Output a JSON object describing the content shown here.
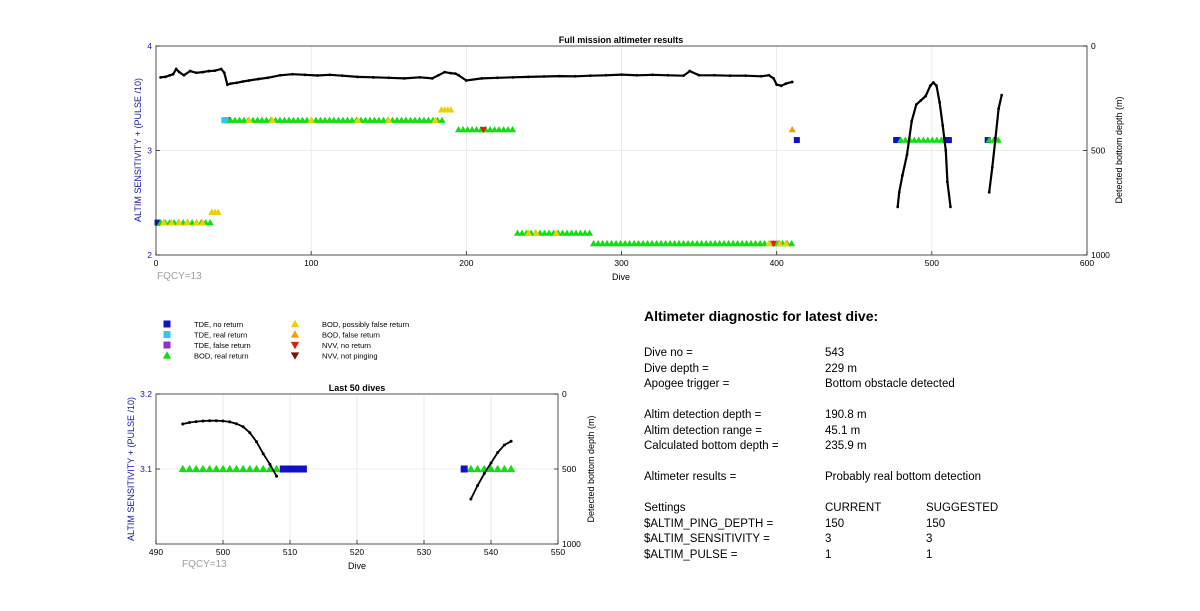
{
  "top_chart": {
    "title": "Full mission altimeter results",
    "xlabel": "Dive",
    "ylabel_left": "ALTIM SENSITIVITY + (PULSE /10)",
    "ylabel_right": "Detected bottom depth (m)",
    "note": "FQCY=13",
    "x_ticks": [
      "0",
      "100",
      "200",
      "300",
      "400",
      "500",
      "600"
    ],
    "y_ticks_left": [
      "2",
      "3",
      "4"
    ],
    "y_ticks_right": [
      "0",
      "500",
      "1000"
    ]
  },
  "bottom_chart": {
    "title": "Last 50 dives",
    "xlabel": "Dive",
    "ylabel_left": "ALTIM SENSITIVITY + (PULSE /10)",
    "ylabel_right": "Detected bottom depth (m)",
    "note": "FQCY=13",
    "x_ticks": [
      "490",
      "500",
      "510",
      "520",
      "530",
      "540",
      "550"
    ],
    "y_ticks_left": [
      "3.1",
      "3.2"
    ],
    "y_ticks_right": [
      "0",
      "500",
      "1000"
    ]
  },
  "legend": {
    "items": [
      {
        "label": "TDE, no return",
        "color": "#1010c8",
        "marker": "square"
      },
      {
        "label": "TDE, real return",
        "color": "#30c8f0",
        "marker": "square"
      },
      {
        "label": "TDE, false return",
        "color": "#9030d0",
        "marker": "square"
      },
      {
        "label": "BOD, real return",
        "color": "#10e010",
        "marker": "triangle-up"
      },
      {
        "label": "BOD, possibly false return",
        "color": "#f0d000",
        "marker": "triangle-up"
      },
      {
        "label": "BOD, false return",
        "color": "#f0a000",
        "marker": "triangle-up"
      },
      {
        "label": "NVV, no return",
        "color": "#e02000",
        "marker": "triangle-down"
      },
      {
        "label": "NVV, not pinging",
        "color": "#801000",
        "marker": "triangle-down"
      }
    ]
  },
  "diagnostic": {
    "title": "Altimeter diagnostic for latest dive:",
    "dive_no_label": "Dive no =",
    "dive_no": "543",
    "dive_depth_label": "Dive depth =",
    "dive_depth": "229 m",
    "apogee_label": "Apogee trigger =",
    "apogee": "Bottom obstacle detected",
    "det_depth_label": "Altim detection depth =",
    "det_depth": "190.8 m",
    "det_range_label": "Altim detection range =",
    "det_range": "45.1 m",
    "calc_depth_label": "Calculated bottom depth =",
    "calc_depth": "235.9 m",
    "results_label": "Altimeter results =",
    "results": "Probably real bottom detection",
    "settings_label": "Settings",
    "current_label": "CURRENT",
    "suggested_label": "SUGGESTED",
    "ping_label": "$ALTIM_PING_DEPTH =",
    "ping_current": "150",
    "ping_suggested": "150",
    "sens_label": "$ALTIM_SENSITIVITY =",
    "sens_current": "3",
    "sens_suggested": "3",
    "pulse_label": "$ALTIM_PULSE =",
    "pulse_current": "1",
    "pulse_suggested": "1"
  },
  "colors": {
    "axis": "#262626",
    "grid": "#e6e6e6",
    "label_blue": "#1414b4",
    "note_gray": "#a0a0a0",
    "depth_line": "#000000"
  },
  "chart_data": [
    {
      "type": "scatter",
      "title": "Full mission altimeter results",
      "xlim": [
        0,
        600
      ],
      "ylim_left": [
        2,
        4
      ],
      "ylim_right": [
        1000,
        0
      ],
      "grid": true,
      "series": [
        {
          "name": "TDE, no return",
          "marker": "square",
          "color": "#1010c8",
          "points": [
            [
              1,
              2.31
            ],
            [
              46,
              3.29
            ],
            [
              413,
              3.1
            ],
            [
              477,
              3.1
            ],
            [
              478,
              3.1
            ],
            [
              509,
              3.1
            ],
            [
              510,
              3.1
            ],
            [
              511,
              3.1
            ],
            [
              536,
              3.1
            ]
          ]
        },
        {
          "name": "TDE, real return",
          "marker": "square",
          "color": "#30c8f0",
          "points": [
            [
              44,
              3.29
            ],
            [
              45,
              3.29
            ]
          ]
        },
        {
          "name": "BOD, real return",
          "marker": "triangle-up",
          "color": "#10e010",
          "ranges": [
            {
              "x0": 3,
              "x1": 37,
              "y": 2.31
            },
            {
              "x0": 48,
              "x1": 187,
              "y": 3.29
            },
            {
              "x0": 195,
              "x1": 232,
              "y": 3.2
            },
            {
              "x0": 233,
              "x1": 280,
              "y": 2.21
            },
            {
              "x0": 282,
              "x1": 410,
              "y": 2.11
            },
            {
              "x0": 480,
              "x1": 508,
              "y": 3.1
            },
            {
              "x0": 537,
              "x1": 543,
              "y": 3.1
            }
          ]
        },
        {
          "name": "BOD, possibly false return",
          "marker": "triangle-up",
          "color": "#f0d000",
          "points": [
            [
              36,
              2.41
            ],
            [
              38,
              2.41
            ],
            [
              40,
              2.41
            ],
            [
              184,
              3.39
            ],
            [
              186,
              3.39
            ],
            [
              188,
              3.39
            ],
            [
              190,
              3.39
            ],
            [
              5,
              2.31
            ],
            [
              10,
              2.31
            ],
            [
              15,
              2.31
            ],
            [
              20,
              2.31
            ],
            [
              26,
              2.31
            ],
            [
              30,
              2.31
            ],
            [
              60,
              3.29
            ],
            [
              75,
              3.29
            ],
            [
              100,
              3.29
            ],
            [
              130,
              3.29
            ],
            [
              150,
              3.29
            ],
            [
              180,
              3.29
            ],
            [
              240,
              2.21
            ],
            [
              245,
              2.21
            ],
            [
              258,
              2.21
            ],
            [
              395,
              2.11
            ],
            [
              402,
              2.11
            ],
            [
              406,
              2.11
            ]
          ]
        },
        {
          "name": "BOD, false return",
          "marker": "triangle-up",
          "color": "#f0a000",
          "points": [
            [
              410,
              3.2
            ]
          ]
        },
        {
          "name": "NVV, no return",
          "marker": "triangle-down",
          "color": "#e02000",
          "points": [
            [
              211,
              3.2
            ],
            [
              398,
              2.11
            ]
          ]
        },
        {
          "name": "Detected bottom depth",
          "axis": "right",
          "line": true,
          "color": "#000000",
          "segments": [
            [
              [
                3,
                150
              ],
              [
                6,
                148
              ],
              [
                9,
                140
              ],
              [
                11,
                135
              ],
              [
                13,
                110
              ],
              [
                15,
                125
              ],
              [
                18,
                140
              ],
              [
                22,
                120
              ],
              [
                26,
                128
              ],
              [
                30,
                125
              ],
              [
                34,
                120
              ],
              [
                38,
                118
              ],
              [
                42,
                110
              ],
              [
                44,
                128
              ],
              [
                46,
                185
              ],
              [
                48,
                180
              ],
              [
                52,
                176
              ],
              [
                56,
                170
              ],
              [
                60,
                165
              ],
              [
                66,
                158
              ],
              [
                72,
                152
              ],
              [
                80,
                140
              ],
              [
                88,
                135
              ],
              [
                96,
                138
              ],
              [
                104,
                141
              ],
              [
                112,
                138
              ],
              [
                120,
                142
              ],
              [
                130,
                148
              ],
              [
                140,
                150
              ],
              [
                150,
                152
              ],
              [
                160,
                155
              ],
              [
                170,
                150
              ],
              [
                178,
                155
              ],
              [
                182,
                140
              ],
              [
                186,
                125
              ],
              [
                190,
                130
              ],
              [
                193,
                132
              ],
              [
                195,
                140
              ],
              [
                200,
                165
              ],
              [
                210,
                155
              ],
              [
                220,
                152
              ],
              [
                230,
                150
              ],
              [
                240,
                148
              ],
              [
                250,
                146
              ],
              [
                260,
                144
              ],
              [
                270,
                145
              ],
              [
                280,
                142
              ],
              [
                290,
                140
              ],
              [
                300,
                137
              ],
              [
                310,
                140
              ],
              [
                320,
                138
              ],
              [
                330,
                140
              ],
              [
                340,
                142
              ],
              [
                344,
                120
              ],
              [
                350,
                140
              ],
              [
                360,
                140
              ],
              [
                370,
                142
              ],
              [
                380,
                142
              ],
              [
                390,
                145
              ],
              [
                395,
                140
              ],
              [
                398,
                155
              ],
              [
                400,
                185
              ],
              [
                403,
                190
              ],
              [
                406,
                180
              ],
              [
                410,
                172
              ]
            ],
            [
              [
                478,
                770
              ],
              [
                479,
                700
              ],
              [
                481,
                620
              ],
              [
                484,
                520
              ],
              [
                487,
                360
              ],
              [
                490,
                280
              ],
              [
                493,
                260
              ],
              [
                496,
                240
              ],
              [
                499,
                190
              ],
              [
                501,
                175
              ],
              [
                503,
                190
              ],
              [
                505,
                270
              ],
              [
                507,
                380
              ],
              [
                509,
                500
              ],
              [
                510,
                650
              ],
              [
                512,
                770
              ]
            ],
            [
              [
                537,
                700
              ],
              [
                539,
                580
              ],
              [
                541,
                440
              ],
              [
                543,
                300
              ],
              [
                545,
                235
              ]
            ]
          ]
        }
      ]
    },
    {
      "type": "scatter",
      "title": "Last 50 dives",
      "xlim": [
        490,
        550
      ],
      "ylim_left": [
        3.0,
        3.2
      ],
      "ylim_right": [
        1000,
        0
      ],
      "grid": true,
      "series": [
        {
          "name": "BOD, real return",
          "marker": "triangle-up",
          "color": "#10e010",
          "x": [
            494,
            495,
            496,
            497,
            498,
            499,
            500,
            501,
            502,
            503,
            504,
            505,
            506,
            507,
            508,
            537,
            538,
            539,
            540,
            541,
            542,
            543
          ],
          "y": 3.1
        },
        {
          "name": "TDE, no return",
          "marker": "square",
          "color": "#1010c8",
          "x": [
            509,
            510,
            511,
            512,
            536
          ],
          "y": 3.1
        },
        {
          "name": "Detected bottom depth",
          "axis": "right",
          "line": true,
          "color": "#000000",
          "segments": [
            [
              [
                494,
                200
              ],
              [
                495,
                190
              ],
              [
                496,
                184
              ],
              [
                497,
                180
              ],
              [
                498,
                178
              ],
              [
                499,
                178
              ],
              [
                500,
                180
              ],
              [
                501,
                186
              ],
              [
                502,
                198
              ],
              [
                503,
                218
              ],
              [
                504,
                258
              ],
              [
                505,
                318
              ],
              [
                506,
                398
              ],
              [
                507,
                468
              ],
              [
                508,
                548
              ]
            ],
            [
              [
                537,
                700
              ],
              [
                538,
                610
              ],
              [
                539,
                530
              ],
              [
                540,
                460
              ],
              [
                541,
                390
              ],
              [
                542,
                340
              ],
              [
                543,
                315
              ]
            ]
          ]
        }
      ]
    }
  ]
}
